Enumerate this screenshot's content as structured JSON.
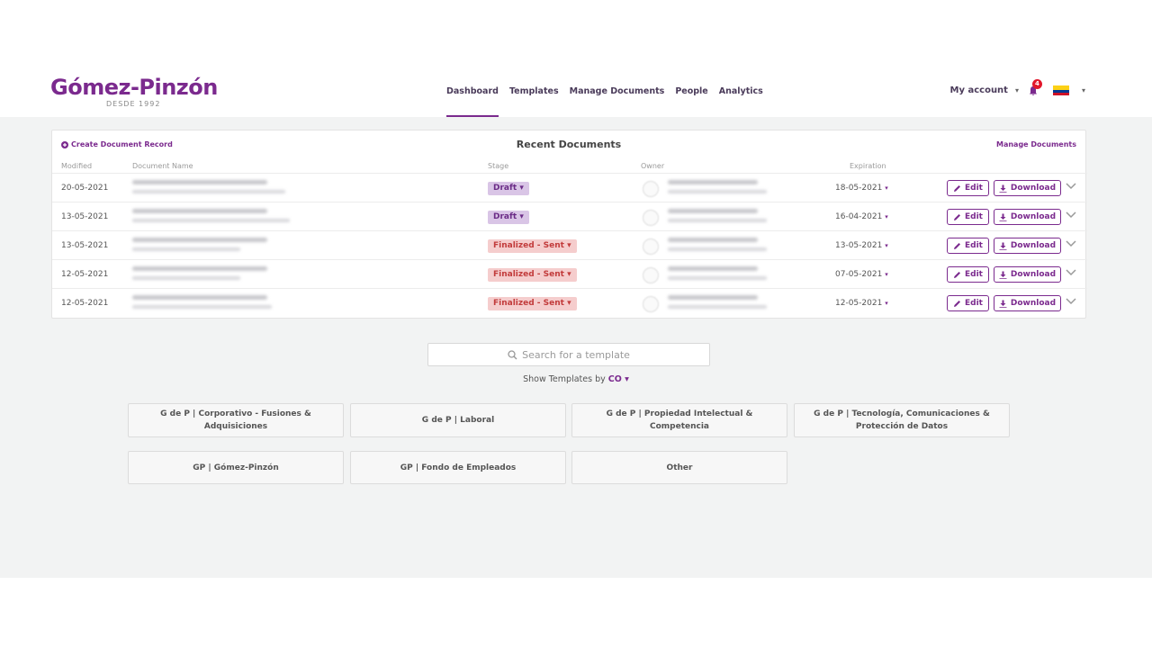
{
  "header": {
    "logo_main": "Gómez-Pinzón",
    "logo_sub": "DESDE 1992",
    "nav": [
      "Dashboard",
      "Templates",
      "Manage Documents",
      "People",
      "Analytics"
    ],
    "my_account": "My account",
    "notification_count": "4",
    "flag_icon": "colombia-flag-icon"
  },
  "recent": {
    "title": "Recent Documents",
    "create_label": "Create Document Record",
    "manage_label": "Manage Documents",
    "columns": {
      "modified": "Modified",
      "name": "Document Name",
      "stage": "Stage",
      "owner": "Owner",
      "expiration": "Expiration"
    },
    "edit_label": "Edit",
    "download_label": "Download",
    "rows": [
      {
        "modified": "20-05-2021",
        "stage": "Draft",
        "expiration": "18-05-2021"
      },
      {
        "modified": "13-05-2021",
        "stage": "Draft",
        "expiration": "16-04-2021"
      },
      {
        "modified": "13-05-2021",
        "stage": "Finalized - Sent",
        "expiration": "13-05-2021"
      },
      {
        "modified": "12-05-2021",
        "stage": "Finalized - Sent",
        "expiration": "07-05-2021"
      },
      {
        "modified": "12-05-2021",
        "stage": "Finalized - Sent",
        "expiration": "12-05-2021"
      }
    ]
  },
  "templates": {
    "search_placeholder": "Search for a template",
    "show_by_label": "Show Templates by",
    "show_by_value": "CO",
    "cards": [
      "G de P | Corporativo - Fusiones & Adquisiciones",
      "G de P | Laboral",
      "G de P | Propiedad Intelectual & Competencia",
      "G de P | Tecnología, Comunicaciones & Protección de Datos",
      "GP | Gómez-Pinzón",
      "GP | Fondo de Empleados",
      "Other"
    ]
  },
  "colors": {
    "accent": "#7b2a8e",
    "draft_bg": "#d9c5e6",
    "final_bg": "#f5cdcd",
    "final_text": "#c23b3b"
  }
}
